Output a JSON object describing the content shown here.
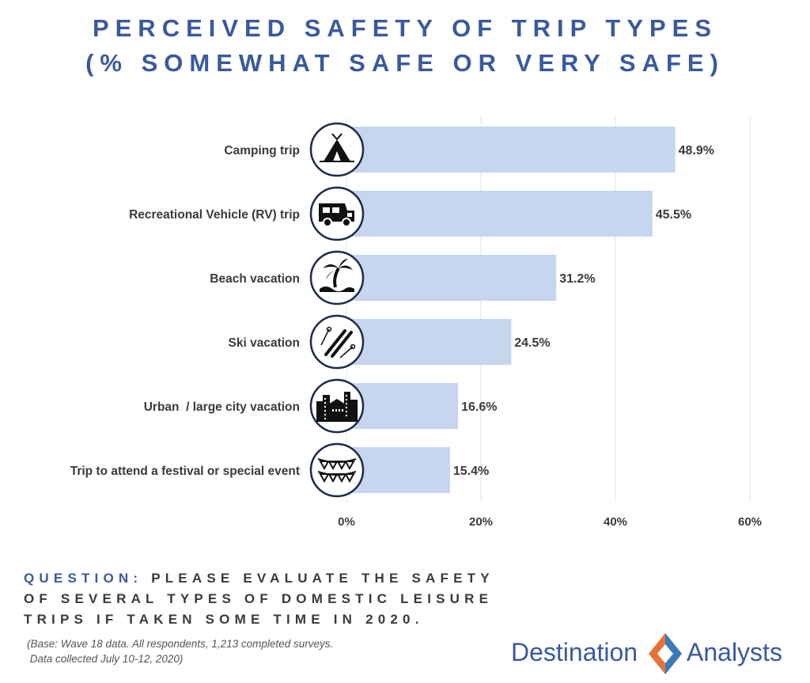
{
  "title_line1": "PERCEIVED SAFETY OF TRIP TYPES",
  "title_line2": "(% SOMEWHAT SAFE OR VERY SAFE)",
  "chart_data": {
    "type": "bar",
    "orientation": "horizontal",
    "categories": [
      "Camping trip",
      "Recreational Vehicle (RV) trip",
      "Beach vacation",
      "Ski vacation",
      "Urban  / large city vacation",
      "Trip to attend a festival or special event"
    ],
    "values": [
      48.9,
      45.5,
      31.2,
      24.5,
      16.6,
      15.4
    ],
    "value_labels": [
      "48.9%",
      "45.5%",
      "31.2%",
      "24.5%",
      "16.6%",
      "15.4%"
    ],
    "icons": [
      "tent-icon",
      "rv-icon",
      "palm-tree-icon",
      "skis-icon",
      "city-icon",
      "bunting-icon"
    ],
    "xlim": [
      0,
      60
    ],
    "xticks": [
      0,
      20,
      40,
      60
    ],
    "xtick_labels": [
      "0%",
      "20%",
      "40%",
      "60%"
    ],
    "grid": true,
    "bar_color": "#c5d6ee",
    "grid_color": "#e3e3e3"
  },
  "question_label": "QUESTION:",
  "question_text": "PLEASE EVALUATE THE SAFETY OF SEVERAL TYPES OF DOMESTIC LEISURE TRIPS IF TAKEN SOME TIME IN 2020.",
  "question_lines": [
    "QUESTION:",
    "PLEASE EVALUATE THE SAFETY",
    "OF SEVERAL TYPES OF DOMESTIC LEISURE",
    "TRIPS IF TAKEN SOME TIME IN 2020."
  ],
  "base_note_lines": [
    "(Base: Wave 18 data. All respondents, 1,213 completed surveys.",
    " Data collected July 10-12, 2020)"
  ],
  "logo": {
    "left_word": "Destination",
    "right_word": "Analysts",
    "text_color": "#3a5a9e",
    "mark_colors": [
      "#e8733a",
      "#3a7ab8"
    ]
  }
}
